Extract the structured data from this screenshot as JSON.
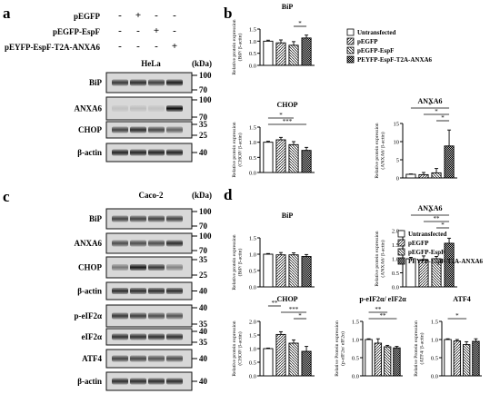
{
  "panel_letters": [
    "a",
    "b",
    "c",
    "d"
  ],
  "blot_a": {
    "conditions": [
      "pEGFP",
      "pEGFP-EspF",
      "pEYFP-EspF-T2A-ANXA6"
    ],
    "signs": [
      [
        "-",
        "+",
        "-",
        "-"
      ],
      [
        "-",
        "-",
        "+",
        "-"
      ],
      [
        "-",
        "-",
        "-",
        "+"
      ]
    ],
    "cell_line": "HeLa",
    "kda_unit": "(kDa)",
    "rows": [
      {
        "label": "BiP",
        "markers": [
          "100",
          "70"
        ],
        "intensity": [
          0.75,
          0.8,
          0.72,
          0.88
        ]
      },
      {
        "label": "ANXA6",
        "markers": [
          "100",
          "70"
        ],
        "intensity": [
          0.1,
          0.12,
          0.1,
          0.95
        ]
      },
      {
        "label": "CHOP",
        "markers": [
          "35",
          "25"
        ],
        "intensity": [
          0.7,
          0.8,
          0.68,
          0.55
        ]
      },
      {
        "label": "β-actin",
        "markers": [
          "40"
        ],
        "intensity": [
          0.85,
          0.85,
          0.85,
          0.85
        ]
      }
    ]
  },
  "blot_c": {
    "cell_line": "Caco-2",
    "kda_unit": "(kDa)",
    "rows": [
      {
        "label": "BiP",
        "markers": [
          "100",
          "70"
        ],
        "intensity": [
          0.7,
          0.7,
          0.7,
          0.7
        ]
      },
      {
        "label": "ANXA6",
        "markers": [
          "100",
          "70"
        ],
        "intensity": [
          0.65,
          0.65,
          0.65,
          0.8
        ]
      },
      {
        "label": "CHOP",
        "markers": [
          "35",
          "25"
        ],
        "intensity": [
          0.45,
          0.9,
          0.75,
          0.4
        ]
      },
      {
        "label": "β-actin",
        "markers": [
          "40"
        ],
        "intensity": [
          0.8,
          0.8,
          0.8,
          0.8
        ]
      },
      {
        "label": "p-eIF2α",
        "markers": [
          "40",
          "35"
        ],
        "intensity": [
          0.75,
          0.72,
          0.65,
          0.62
        ]
      },
      {
        "label": "eIF2α",
        "markers": [
          "40",
          "35"
        ],
        "intensity": [
          0.78,
          0.78,
          0.78,
          0.78
        ]
      },
      {
        "label": "ATF4",
        "markers": [
          "40"
        ],
        "intensity": [
          0.7,
          0.68,
          0.62,
          0.66
        ]
      },
      {
        "label": "β-actin",
        "markers": [
          "40"
        ],
        "intensity": [
          0.8,
          0.8,
          0.8,
          0.8
        ]
      }
    ]
  },
  "legend": {
    "entries": [
      "Untransfected",
      "pEGFP",
      "pEGFP-EspF",
      "PEYFP-EspF-T2A-ANXA6"
    ],
    "patterns": [
      "none",
      "diag",
      "diag2",
      "dense"
    ]
  },
  "chart_data": [
    {
      "panel": "b",
      "type": "bar",
      "title": "BiP",
      "ylabel": "Relative protein expression (BiP/ β-actin)",
      "ylim": [
        0,
        1.5
      ],
      "yticks": [
        "0.0",
        "0.5",
        "1.0",
        "1.5"
      ],
      "categories": [
        "Untransfected",
        "pEGFP",
        "pEGFP-EspF",
        "PEYFP-EspF-T2A-ANXA6"
      ],
      "values": [
        1.0,
        0.93,
        0.83,
        1.13
      ],
      "errors": [
        0.04,
        0.12,
        0.15,
        0.12
      ],
      "annotations": [
        {
          "from": 2,
          "to": 3,
          "label": "*"
        }
      ]
    },
    {
      "panel": "b",
      "type": "bar",
      "title": "CHOP",
      "ylabel": "Relative protein expression (CHOP/ β-actin)",
      "ylim": [
        0,
        1.5
      ],
      "yticks": [
        "0.0",
        "0.5",
        "1.0",
        "1.5"
      ],
      "categories": [
        "Untransfected",
        "pEGFP",
        "pEGFP-EspF",
        "PEYFP-EspF-T2A-ANXA6"
      ],
      "values": [
        1.0,
        1.08,
        0.92,
        0.73
      ],
      "errors": [
        0.03,
        0.08,
        0.1,
        0.1
      ],
      "annotations": [
        {
          "from": 0,
          "to": 2,
          "label": "*"
        },
        {
          "from": 0,
          "to": 3,
          "label": "***"
        }
      ]
    },
    {
      "panel": "b",
      "type": "bar",
      "title": "ANXA6",
      "ylabel": "Relative protein expression (ANXA6/ β-actin)",
      "ylim": [
        0,
        15
      ],
      "yticks": [
        "0",
        "5",
        "10",
        "15"
      ],
      "categories": [
        "Untransfected",
        "pEGFP",
        "pEGFP-EspF",
        "PEYFP-EspF-T2A-ANXA6"
      ],
      "values": [
        1.0,
        0.9,
        1.4,
        8.8
      ],
      "errors": [
        0.1,
        0.6,
        1.2,
        4.4
      ],
      "annotations": [
        {
          "from": 0,
          "to": 3,
          "label": "*"
        },
        {
          "from": 1,
          "to": 3,
          "label": "*"
        },
        {
          "from": 2,
          "to": 3,
          "label": "*"
        }
      ]
    },
    {
      "panel": "d",
      "type": "bar",
      "title": "BiP",
      "ylabel": "Relative protein expression (BiP/ β-actin)",
      "ylim": [
        0,
        1.5
      ],
      "yticks": [
        "0.0",
        "0.5",
        "1.0",
        "1.5"
      ],
      "categories": [
        "Untransfected",
        "pEGFP",
        "pEGFP-EspF",
        "PEYFP-EspF-T2A-ANXA6"
      ],
      "values": [
        1.0,
        0.98,
        0.98,
        0.93
      ],
      "errors": [
        0.02,
        0.07,
        0.06,
        0.06
      ],
      "annotations": []
    },
    {
      "panel": "d",
      "type": "bar",
      "title": "ANXA6",
      "ylabel": "Relative protein expression (ANXA6/ β-actin)",
      "ylim": [
        0,
        2.0
      ],
      "yticks": [
        "0.0",
        "0.5",
        "1.0",
        "1.5",
        "2.0"
      ],
      "categories": [
        "Untransfected",
        "pEGFP",
        "pEGFP-EspF",
        "PEYFP-EspF-T2A-ANXA6"
      ],
      "values": [
        1.0,
        0.95,
        1.0,
        1.55
      ],
      "errors": [
        0.05,
        0.15,
        0.08,
        0.18
      ],
      "annotations": [
        {
          "from": 0,
          "to": 3,
          "label": "*"
        },
        {
          "from": 1,
          "to": 3,
          "label": "**"
        },
        {
          "from": 2,
          "to": 3,
          "label": "*"
        }
      ]
    },
    {
      "panel": "d",
      "type": "bar",
      "title": "CHOP",
      "ylabel": "Relative protein expression (CHOP/ β-actin)",
      "ylim": [
        0,
        2.0
      ],
      "yticks": [
        "0.0",
        "0.5",
        "1.0",
        "1.5",
        "2.0"
      ],
      "categories": [
        "Untransfected",
        "pEGFP",
        "pEGFP-EspF",
        "PEYFP-EspF-T2A-ANXA6"
      ],
      "values": [
        1.0,
        1.52,
        1.2,
        0.9
      ],
      "errors": [
        0.02,
        0.1,
        0.12,
        0.18
      ],
      "annotations": [
        {
          "from": 0,
          "to": 1,
          "label": "**"
        },
        {
          "from": 1,
          "to": 3,
          "label": "***"
        },
        {
          "from": 2,
          "to": 3,
          "label": "*"
        }
      ]
    },
    {
      "panel": "d",
      "type": "bar",
      "title": "p-eIF2α/ eIF2α",
      "ylabel": "Relative Protein expression (p-eIF2α/ eIF2α)",
      "ylim": [
        0,
        1.5
      ],
      "yticks": [
        "0.0",
        "0.5",
        "1.0",
        "1.5"
      ],
      "categories": [
        "Untransfected",
        "pEGFP",
        "pEGFP-EspF",
        "PEYFP-EspF-T2A-ANXA6"
      ],
      "values": [
        1.0,
        0.9,
        0.8,
        0.77
      ],
      "errors": [
        0.02,
        0.12,
        0.04,
        0.04
      ],
      "annotations": [
        {
          "from": 0,
          "to": 2,
          "label": "**"
        },
        {
          "from": 0,
          "to": 3,
          "label": "**"
        }
      ]
    },
    {
      "panel": "d",
      "type": "bar",
      "title": "ATF4",
      "ylabel": "Relative Protein expression (ATF4/ β-actin)",
      "ylim": [
        0,
        1.5
      ],
      "yticks": [
        "0.0",
        "0.5",
        "1.0",
        "1.5"
      ],
      "categories": [
        "Untransfected",
        "pEGFP",
        "pEGFP-EspF",
        "PEYFP-EspF-T2A-ANXA6"
      ],
      "values": [
        1.0,
        0.96,
        0.86,
        0.95
      ],
      "errors": [
        0.02,
        0.04,
        0.08,
        0.07
      ],
      "annotations": [
        {
          "from": 0,
          "to": 2,
          "label": "*"
        }
      ]
    }
  ]
}
